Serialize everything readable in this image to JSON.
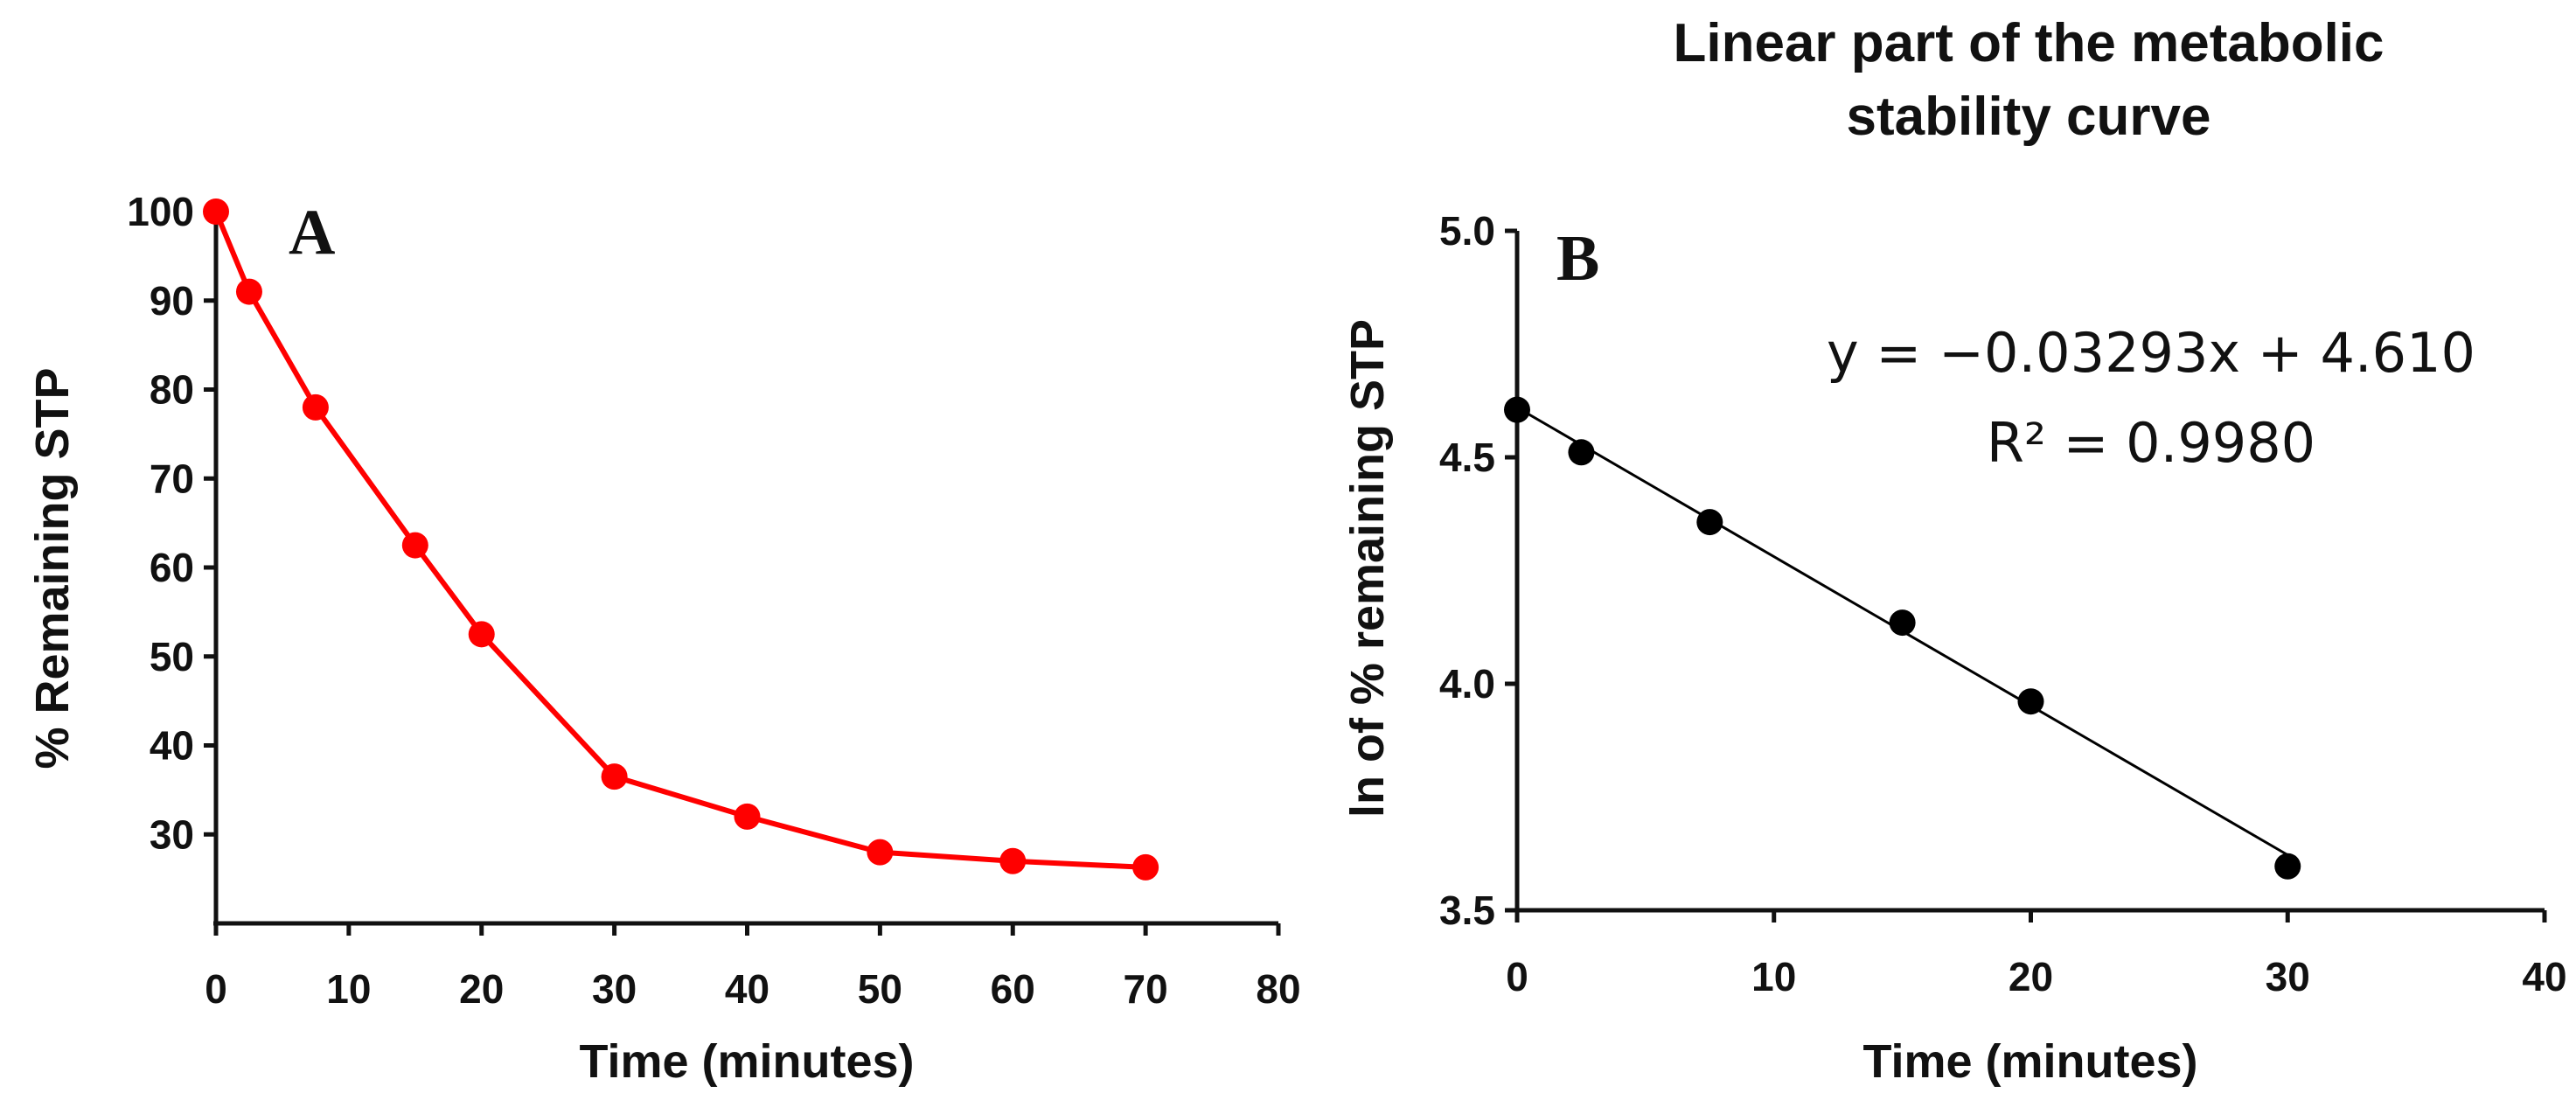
{
  "chart_data": [
    {
      "panel": "A",
      "type": "line",
      "title": "",
      "xlabel": "Time (minutes)",
      "ylabel": "% Remaining STP",
      "xlim": [
        0,
        80
      ],
      "ylim": [
        20,
        100
      ],
      "xticks": [
        0,
        10,
        20,
        30,
        40,
        50,
        60,
        70,
        80
      ],
      "yticks": [
        30,
        40,
        50,
        60,
        70,
        80,
        90,
        100
      ],
      "grid": false,
      "series": [
        {
          "name": "% Remaining STP",
          "color": "#ff0000",
          "x": [
            0,
            2.5,
            7.5,
            15,
            20,
            30,
            40,
            50,
            60,
            70
          ],
          "y": [
            100,
            91,
            78,
            62.5,
            52.5,
            36.5,
            32,
            28,
            27,
            26.3
          ]
        }
      ]
    },
    {
      "panel": "B",
      "type": "scatter",
      "title": "Linear part of the metabolic stability curve",
      "title_lines": [
        "Linear part of the metabolic",
        "stability curve"
      ],
      "xlabel": "Time (minutes)",
      "ylabel": "ln of % remaining STP",
      "xlim": [
        0,
        40
      ],
      "ylim": [
        3.5,
        5.0
      ],
      "xticks": [
        0,
        10,
        20,
        30,
        40
      ],
      "yticks": [
        "3.5",
        "4.0",
        "4.5",
        "5.0"
      ],
      "grid": false,
      "series": [
        {
          "name": "ln of % remaining STP",
          "color": "#000000",
          "x": [
            0,
            2.5,
            7.5,
            15,
            20,
            30
          ],
          "y": [
            4.605,
            4.511,
            4.357,
            4.135,
            3.961,
            3.597
          ]
        }
      ],
      "fit": {
        "slope": -0.03293,
        "intercept": 4.61,
        "x_range": [
          0,
          30
        ],
        "color": "#000000"
      },
      "equation": "y = −0.03293x + 4.610",
      "r_squared": "R² = 0.9980"
    }
  ]
}
